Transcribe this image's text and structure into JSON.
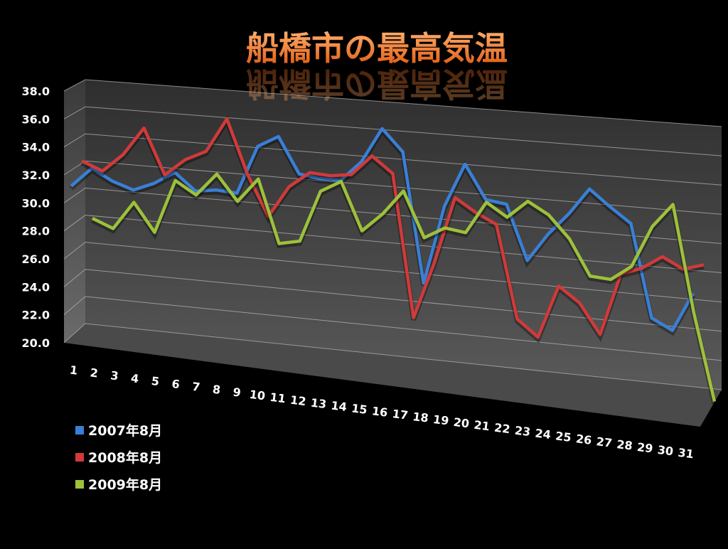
{
  "chart_data": {
    "type": "line3d",
    "title": "船橋市の最高気温",
    "categories": [
      "1",
      "2",
      "3",
      "4",
      "5",
      "6",
      "7",
      "8",
      "9",
      "10",
      "11",
      "12",
      "13",
      "14",
      "15",
      "16",
      "17",
      "18",
      "19",
      "20",
      "21",
      "22",
      "23",
      "24",
      "25",
      "26",
      "27",
      "28",
      "29",
      "30",
      "31"
    ],
    "series": [
      {
        "name": "2007年8月",
        "color": "#3a7fd5",
        "values": [
          31.2,
          32.6,
          31.8,
          31.3,
          31.9,
          32.8,
          31.6,
          31.8,
          31.7,
          35.1,
          35.9,
          33.4,
          33.2,
          33.2,
          34.6,
          37.0,
          35.5,
          26.6,
          32.0,
          35.0,
          32.7,
          32.5,
          28.8,
          30.7,
          32.2,
          34.0,
          32.9,
          31.9,
          25.7,
          25.0,
          27.6
        ]
      },
      {
        "name": "2008年8月",
        "color": "#d03a3a",
        "values": [
          33.0,
          32.4,
          33.7,
          35.7,
          32.5,
          33.7,
          34.4,
          36.8,
          33.0,
          30.2,
          32.4,
          33.5,
          33.4,
          33.6,
          35.0,
          33.9,
          24.1,
          28.0,
          32.6,
          31.7,
          31.0,
          24.7,
          23.6,
          27.2,
          26.2,
          24.2,
          28.4,
          28.9,
          29.8,
          29.1,
          29.5
        ]
      },
      {
        "name": "2009年8月",
        "color": "#9dc13a",
        "values": [
          28.9,
          28.3,
          30.3,
          28.3,
          32.1,
          31.2,
          32.8,
          31.0,
          32.7,
          28.3,
          28.6,
          32.2,
          33.0,
          29.7,
          31.0,
          32.7,
          29.6,
          30.4,
          30.2,
          32.4,
          31.5,
          32.7,
          31.9,
          30.4,
          28.0,
          27.9,
          28.9,
          31.7,
          33.3,
          26.2,
          20.4
        ]
      }
    ],
    "ylim": [
      20,
      38
    ],
    "yticks": [
      {
        "value": 20,
        "label": "20.0"
      },
      {
        "value": 22,
        "label": "22.0"
      },
      {
        "value": 24,
        "label": "24.0"
      },
      {
        "value": 26,
        "label": "26.0"
      },
      {
        "value": 28,
        "label": "28.0"
      },
      {
        "value": 30,
        "label": "30.0"
      },
      {
        "value": 32,
        "label": "32.0"
      },
      {
        "value": 34,
        "label": "34.0"
      },
      {
        "value": 36,
        "label": "36.0"
      },
      {
        "value": 38,
        "label": "38.0"
      }
    ],
    "grid": true
  }
}
